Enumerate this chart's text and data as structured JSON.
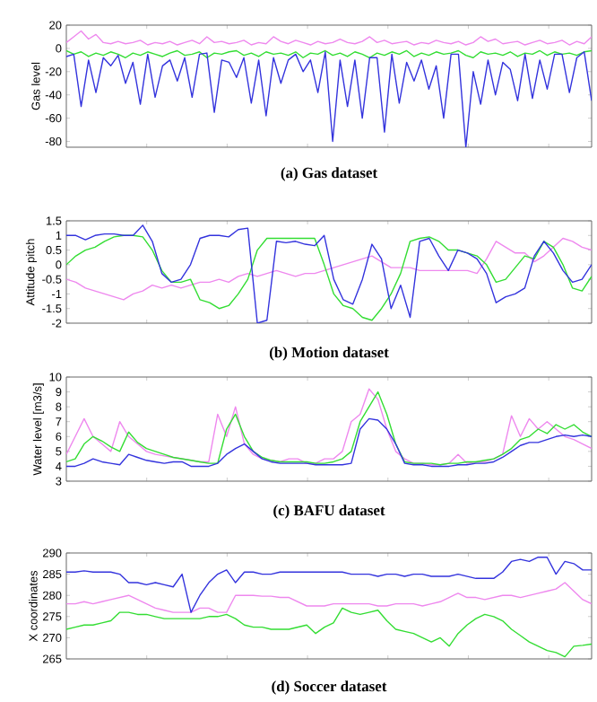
{
  "chart_data": [
    {
      "type": "line",
      "title": "(a) Gas dataset",
      "ylabel": "Gas level",
      "ylim": [
        -85,
        20
      ],
      "yticks": [
        -80,
        -60,
        -40,
        -20,
        0,
        20
      ],
      "tick_labels": "y",
      "categories": [
        null,
        null,
        null,
        null,
        null,
        null,
        null,
        null,
        null,
        null,
        null,
        null,
        null,
        null,
        null,
        null,
        null,
        null,
        null,
        null,
        null,
        null,
        null,
        null,
        null,
        null,
        null,
        null,
        null,
        null,
        null,
        null,
        null,
        null,
        null,
        null,
        null,
        null,
        null,
        null,
        null,
        null,
        null,
        null,
        null,
        null,
        null,
        null,
        null,
        null,
        null,
        null,
        null,
        null,
        null,
        null,
        null,
        null,
        null,
        null,
        null,
        null,
        null,
        null,
        null,
        null,
        null,
        null,
        null,
        null,
        null,
        null
      ],
      "series": [
        {
          "color": "#ee88ee",
          "values": [
            5,
            10,
            15,
            8,
            12,
            5,
            4,
            6,
            4,
            5,
            7,
            3,
            5,
            4,
            6,
            3,
            5,
            7,
            4,
            10,
            5,
            6,
            4,
            5,
            7,
            3,
            5,
            4,
            10,
            6,
            4,
            7,
            5,
            3,
            6,
            4,
            5,
            8,
            5,
            4,
            6,
            10,
            5,
            7,
            4,
            5,
            6,
            3,
            5,
            4,
            7,
            5,
            4,
            6,
            3,
            5,
            10,
            6,
            8,
            4,
            5,
            6,
            3,
            5,
            7,
            4,
            5,
            7,
            3,
            6,
            4,
            10
          ]
        },
        {
          "color": "#33dd33",
          "values": [
            -2,
            -5,
            -3,
            -7,
            -4,
            -6,
            -3,
            -5,
            -8,
            -4,
            -6,
            -3,
            -5,
            -7,
            -4,
            -2,
            -6,
            -5,
            -3,
            -8,
            -4,
            -5,
            -3,
            -2,
            -6,
            -4,
            -7,
            -3,
            -5,
            -4,
            -6,
            -3,
            -8,
            -4,
            -5,
            -2,
            -6,
            -4,
            -7,
            -3,
            -5,
            -8,
            -4,
            -6,
            -3,
            -5,
            -2,
            -7,
            -4,
            -6,
            -3,
            -5,
            -4,
            -2,
            -6,
            -8,
            -3,
            -5,
            -4,
            -6,
            -3,
            -7,
            -4,
            -5,
            -2,
            -6,
            -3,
            -5,
            -4,
            -6,
            -3,
            -2
          ]
        },
        {
          "color": "#3333dd",
          "values": [
            -7,
            -5,
            -50,
            -10,
            -38,
            -8,
            -15,
            -6,
            -30,
            -12,
            -48,
            -5,
            -42,
            -15,
            -10,
            -28,
            -8,
            -42,
            -5,
            -4,
            -55,
            -10,
            -12,
            -25,
            -8,
            -47,
            -10,
            -58,
            -8,
            -30,
            -10,
            -5,
            -20,
            -10,
            -38,
            -3,
            -80,
            -10,
            -50,
            -10,
            -60,
            -8,
            -8,
            -72,
            -5,
            -47,
            -12,
            -28,
            -10,
            -35,
            -15,
            -60,
            -5,
            -5,
            -85,
            -20,
            -48,
            -10,
            -40,
            -12,
            -18,
            -45,
            -5,
            -43,
            -10,
            -35,
            -5,
            -5,
            -38,
            -8,
            -3,
            -45
          ]
        }
      ]
    },
    {
      "type": "line",
      "title": "(b) Motion dataset",
      "ylabel": "Attitude pitch",
      "ylim": [
        -2,
        1.5
      ],
      "yticks": [
        -2,
        -1.5,
        -1,
        -0.5,
        0,
        0.5,
        1,
        1.5
      ],
      "tick_labels": "y",
      "categories": [
        null,
        null,
        null,
        null,
        null,
        null,
        null,
        null,
        null,
        null,
        null,
        null,
        null,
        null,
        null,
        null,
        null,
        null,
        null,
        null,
        null,
        null,
        null,
        null,
        null,
        null,
        null,
        null,
        null,
        null,
        null,
        null,
        null,
        null,
        null,
        null,
        null,
        null,
        null,
        null,
        null,
        null,
        null,
        null,
        null,
        null,
        null,
        null,
        null,
        null,
        null,
        null,
        null,
        null,
        null,
        null
      ],
      "series": [
        {
          "color": "#ee88ee",
          "values": [
            -0.5,
            -0.6,
            -0.8,
            -0.9,
            -1.0,
            -1.1,
            -1.2,
            -1.0,
            -0.9,
            -0.7,
            -0.8,
            -0.7,
            -0.8,
            -0.7,
            -0.6,
            -0.6,
            -0.5,
            -0.6,
            -0.4,
            -0.3,
            -0.4,
            -0.3,
            -0.2,
            -0.3,
            -0.4,
            -0.3,
            -0.3,
            -0.2,
            -0.1,
            0.0,
            0.1,
            0.2,
            0.3,
            0.1,
            -0.1,
            -0.1,
            -0.1,
            -0.2,
            -0.2,
            -0.2,
            -0.2,
            -0.2,
            -0.2,
            -0.3,
            0.2,
            0.8,
            0.6,
            0.4,
            0.4,
            0.1,
            0.3,
            0.6,
            0.9,
            0.8,
            0.6,
            0.5
          ]
        },
        {
          "color": "#33dd33",
          "values": [
            0.0,
            0.3,
            0.5,
            0.6,
            0.8,
            0.95,
            1.0,
            1.0,
            0.95,
            0.5,
            -0.2,
            -0.6,
            -0.6,
            -0.5,
            -1.2,
            -1.3,
            -1.5,
            -1.4,
            -1.0,
            -0.5,
            0.5,
            0.9,
            0.9,
            0.9,
            0.9,
            0.9,
            0.9,
            0.0,
            -1.0,
            -1.4,
            -1.5,
            -1.8,
            -1.9,
            -1.5,
            -1.0,
            -0.3,
            0.8,
            0.9,
            0.95,
            0.8,
            0.5,
            0.5,
            0.4,
            0.3,
            0.0,
            -0.6,
            -0.5,
            -0.1,
            0.3,
            0.2,
            0.8,
            0.6,
            0.0,
            -0.8,
            -0.9,
            -0.4
          ]
        },
        {
          "color": "#3333dd",
          "values": [
            1.0,
            1.0,
            0.85,
            1.0,
            1.05,
            1.05,
            1.0,
            1.0,
            1.35,
            0.8,
            -0.3,
            -0.6,
            -0.5,
            0.0,
            0.9,
            1.0,
            1.0,
            0.95,
            1.2,
            1.25,
            -2.0,
            -1.9,
            0.8,
            0.75,
            0.8,
            0.7,
            0.65,
            1.0,
            -0.5,
            -1.2,
            -1.35,
            -0.5,
            0.7,
            0.2,
            -1.5,
            -0.7,
            -1.8,
            0.8,
            0.9,
            0.3,
            -0.2,
            0.5,
            0.4,
            0.2,
            -0.3,
            -1.3,
            -1.1,
            -1.0,
            -0.8,
            0.3,
            0.8,
            0.4,
            -0.2,
            -0.6,
            -0.5,
            0.0
          ]
        }
      ]
    },
    {
      "type": "line",
      "title": "(c) BAFU dataset",
      "ylabel": "Water level [m3/s]",
      "ylim": [
        3,
        10
      ],
      "yticks": [
        3,
        4,
        5,
        6,
        7,
        8,
        9,
        10
      ],
      "tick_labels": "y",
      "categories": [
        null,
        null,
        null,
        null,
        null,
        null,
        null,
        null,
        null,
        null,
        null,
        null,
        null,
        null,
        null,
        null,
        null,
        null,
        null,
        null,
        null,
        null,
        null,
        null,
        null,
        null,
        null,
        null,
        null,
        null,
        null,
        null,
        null,
        null,
        null,
        null,
        null,
        null,
        null,
        null,
        null,
        null,
        null,
        null,
        null,
        null,
        null,
        null,
        null,
        null,
        null,
        null,
        null,
        null,
        null,
        null,
        null,
        null,
        null,
        null
      ],
      "series": [
        {
          "color": "#ee88ee",
          "values": [
            4.8,
            6.0,
            7.2,
            6.0,
            5.5,
            5.0,
            7.0,
            6.0,
            5.5,
            5.0,
            4.8,
            4.7,
            4.6,
            4.5,
            4.4,
            4.3,
            4.3,
            7.5,
            6.0,
            8.0,
            5.5,
            4.8,
            4.5,
            4.4,
            4.3,
            4.5,
            4.5,
            4.2,
            4.2,
            4.5,
            4.5,
            5.0,
            7.0,
            7.5,
            9.2,
            8.5,
            6.5,
            5.0,
            4.5,
            4.2,
            4.2,
            4.1,
            4.1,
            4.2,
            4.8,
            4.2,
            4.3,
            4.3,
            4.5,
            4.8,
            7.4,
            6.0,
            7.2,
            6.5,
            7.0,
            6.5,
            6.0,
            5.8,
            5.5,
            5.2
          ]
        },
        {
          "color": "#33dd33",
          "values": [
            4.3,
            4.5,
            5.5,
            6.0,
            5.7,
            5.3,
            5.0,
            6.3,
            5.6,
            5.2,
            5.0,
            4.8,
            4.6,
            4.5,
            4.4,
            4.3,
            4.2,
            4.2,
            6.5,
            7.5,
            6.0,
            5.0,
            4.6,
            4.4,
            4.3,
            4.3,
            4.3,
            4.3,
            4.2,
            4.2,
            4.3,
            4.5,
            5.0,
            7.0,
            8.0,
            9.0,
            7.5,
            5.5,
            4.3,
            4.2,
            4.2,
            4.2,
            4.1,
            4.2,
            4.2,
            4.3,
            4.3,
            4.4,
            4.5,
            4.8,
            5.2,
            5.8,
            6.0,
            6.5,
            6.2,
            6.8,
            6.5,
            6.8,
            6.3,
            6.0
          ]
        },
        {
          "color": "#3333dd",
          "values": [
            4.0,
            4.0,
            4.2,
            4.5,
            4.3,
            4.2,
            4.1,
            4.8,
            4.6,
            4.4,
            4.3,
            4.2,
            4.3,
            4.3,
            4.0,
            4.0,
            4.0,
            4.2,
            4.8,
            5.2,
            5.5,
            5.0,
            4.5,
            4.3,
            4.2,
            4.2,
            4.2,
            4.2,
            4.1,
            4.1,
            4.1,
            4.1,
            4.2,
            6.5,
            7.2,
            7.1,
            6.5,
            5.5,
            4.2,
            4.1,
            4.1,
            4.0,
            4.0,
            4.0,
            4.1,
            4.1,
            4.2,
            4.2,
            4.3,
            4.6,
            5.0,
            5.4,
            5.6,
            5.6,
            5.8,
            6.0,
            6.1,
            6.0,
            6.1,
            6.0
          ]
        }
      ]
    },
    {
      "type": "line",
      "title": "(d) Soccer dataset",
      "ylabel": "X coordinates",
      "ylim": [
        265,
        290
      ],
      "yticks": [
        265,
        270,
        275,
        280,
        285,
        290
      ],
      "tick_labels": "y",
      "categories": [
        null,
        null,
        null,
        null,
        null,
        null,
        null,
        null,
        null,
        null,
        null,
        null,
        null,
        null,
        null,
        null,
        null,
        null,
        null,
        null,
        null,
        null,
        null,
        null,
        null,
        null,
        null,
        null,
        null,
        null,
        null,
        null,
        null,
        null,
        null,
        null,
        null,
        null,
        null,
        null,
        null,
        null,
        null,
        null,
        null,
        null,
        null,
        null,
        null,
        null,
        null,
        null,
        null,
        null,
        null,
        null,
        null,
        null,
        null,
        null
      ],
      "series": [
        {
          "color": "#ee88ee",
          "values": [
            278,
            278,
            278.5,
            278,
            278.5,
            279,
            279.5,
            280,
            279,
            278,
            277,
            276.5,
            276,
            276,
            276,
            277,
            277,
            276,
            276,
            280,
            280,
            280,
            279.8,
            279.8,
            279.5,
            279.5,
            278.5,
            277.5,
            277.5,
            277.5,
            278,
            278,
            278,
            278,
            278,
            277.5,
            277.5,
            278,
            278,
            278,
            277.5,
            278,
            278.5,
            279.5,
            280.5,
            279.5,
            279.5,
            279,
            279.5,
            280,
            280,
            279.5,
            280,
            280.5,
            281,
            281.5,
            283,
            281,
            279,
            278
          ]
        },
        {
          "color": "#33dd33",
          "values": [
            272,
            272.5,
            273,
            273,
            273.5,
            274,
            276,
            276,
            275.5,
            275.5,
            275,
            274.5,
            274.5,
            274.5,
            274.5,
            274.5,
            275,
            275,
            275.5,
            274.5,
            273,
            272.5,
            272.5,
            272,
            272,
            272,
            272.5,
            273,
            271,
            272.5,
            273.5,
            277,
            276,
            275.5,
            276,
            276.5,
            274,
            272,
            271.5,
            271,
            270,
            269,
            270,
            268,
            271,
            273,
            274.5,
            275.5,
            275,
            274,
            272,
            270.5,
            269,
            268,
            267,
            266.5,
            265.5,
            268,
            268.2,
            268.5
          ]
        },
        {
          "color": "#3333dd",
          "values": [
            285.5,
            285.5,
            285.8,
            285.5,
            285.5,
            285.5,
            285,
            283,
            283,
            282.5,
            283,
            282.5,
            282,
            285,
            276,
            280,
            283,
            285,
            286,
            283,
            285.5,
            285.5,
            285,
            285,
            285.5,
            285.5,
            285.5,
            285.5,
            285.5,
            285.5,
            285.5,
            285.5,
            285,
            285,
            285,
            284.5,
            285,
            285,
            284.5,
            285,
            285,
            284.5,
            284.5,
            284.5,
            285,
            284.5,
            284,
            284,
            284,
            285.5,
            288,
            288.5,
            288,
            289,
            289,
            285,
            288,
            287.5,
            286,
            286
          ]
        }
      ]
    }
  ]
}
